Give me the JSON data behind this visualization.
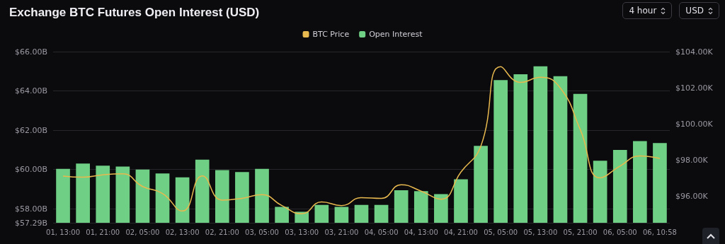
{
  "chart_data": {
    "type": "bar",
    "title": "Exchange BTC Futures Open Interest (USD)",
    "categories": [
      "01, 13:00",
      null,
      "01, 21:00",
      null,
      "02, 05:00",
      null,
      "02, 13:00",
      null,
      "02, 21:00",
      null,
      "03, 05:00",
      null,
      "03, 13:00",
      null,
      "03, 21:00",
      null,
      "04, 05:00",
      null,
      "04, 13:00",
      null,
      "04, 21:00",
      null,
      "05, 05:00",
      null,
      "05, 13:00",
      null,
      "05, 21:00",
      null,
      "06, 05:00",
      null,
      "06, 10:58"
    ],
    "series": [
      {
        "name": "BTC Price",
        "type": "line",
        "axis": "y2",
        "color": "#e8b94e",
        "values": [
          97.13,
          97.07,
          97.2,
          97.25,
          96.55,
          96.17,
          95.2,
          97.14,
          95.8,
          95.9,
          96.1,
          95.5,
          95.05,
          95.7,
          95.5,
          95.94,
          95.9,
          96.65,
          96.3,
          95.85,
          97.35,
          98.78,
          103.17,
          102.3,
          102.58,
          101.99,
          99.7,
          97.03,
          97.68,
          98.24,
          98.1
        ]
      },
      {
        "name": "Open Interest",
        "color": "#6fcf84",
        "values": [
          60.03,
          60.3,
          60.2,
          60.15,
          60.0,
          59.8,
          59.6,
          60.5,
          59.97,
          59.87,
          60.03,
          58.1,
          57.85,
          58.2,
          58.1,
          58.2,
          58.2,
          58.95,
          58.9,
          58.75,
          59.5,
          61.2,
          64.55,
          64.85,
          65.25,
          64.75,
          63.85,
          60.45,
          61.0,
          61.45,
          61.35
        ]
      }
    ],
    "ylim": [
      57.29,
      66
    ],
    "yticks": [
      {
        "value": 57.29,
        "label": "$57.29B"
      },
      {
        "value": 58,
        "label": "$58.00B"
      },
      {
        "value": 60,
        "label": "$60.00B"
      },
      {
        "value": 62,
        "label": "$62.00B"
      },
      {
        "value": 64,
        "label": "$64.00B"
      },
      {
        "value": 66,
        "label": "$66.00B"
      }
    ],
    "y2lim": [
      94.55,
      104
    ],
    "y2ticks": [
      {
        "value": 96,
        "label": "$96.00K"
      },
      {
        "value": 98,
        "label": "$98.00K"
      },
      {
        "value": 100,
        "label": "$100.00K"
      },
      {
        "value": 102,
        "label": "$102.00K"
      },
      {
        "value": 104,
        "label": "$104.00K"
      }
    ],
    "grid": "y",
    "legend": "top",
    "marker": "none",
    "line_style": "solid",
    "annotations": [
      "4 hour",
      "USD"
    ]
  }
}
